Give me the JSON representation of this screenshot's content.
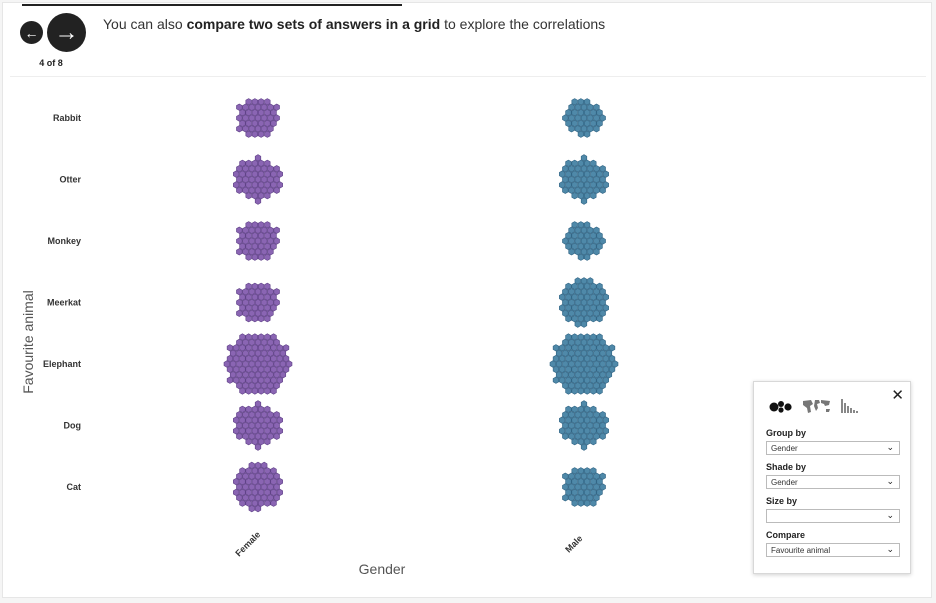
{
  "navigation": {
    "prev_icon": "arrow-left-icon",
    "next_icon": "arrow-right-icon",
    "prev_glyph": "←",
    "next_glyph": "→",
    "step": "4 of 8"
  },
  "headline": {
    "before": "You can also ",
    "bold": "compare two sets of answers in a grid",
    "after": " to explore the correlations"
  },
  "chart_data": {
    "type": "packed-hexagon-grid",
    "y_axis_title": "Favourite animal",
    "x_axis_title": "Gender",
    "rows": [
      "Rabbit",
      "Otter",
      "Monkey",
      "Meerkat",
      "Elephant",
      "Dog",
      "Cat"
    ],
    "columns": [
      "Female",
      "Male"
    ],
    "series": [
      {
        "name": "Female",
        "color": "#8a65b3",
        "stroke": "#5e3f86",
        "values": [
          40,
          48,
          40,
          40,
          94,
          48,
          54
        ]
      },
      {
        "name": "Male",
        "color": "#4f89a9",
        "stroke": "#2f6383",
        "values": [
          34,
          48,
          34,
          54,
          94,
          48,
          40
        ]
      }
    ]
  },
  "panel": {
    "close_glyph": "✕",
    "mode_icons": [
      "bubbles-icon",
      "world-map-icon",
      "histogram-icon"
    ],
    "group_by": {
      "label": "Group by",
      "value": "Gender"
    },
    "shade_by": {
      "label": "Shade by",
      "value": "Gender"
    },
    "size_by": {
      "label": "Size by",
      "value": ""
    },
    "compare": {
      "label": "Compare",
      "value": "Favourite animal"
    }
  }
}
